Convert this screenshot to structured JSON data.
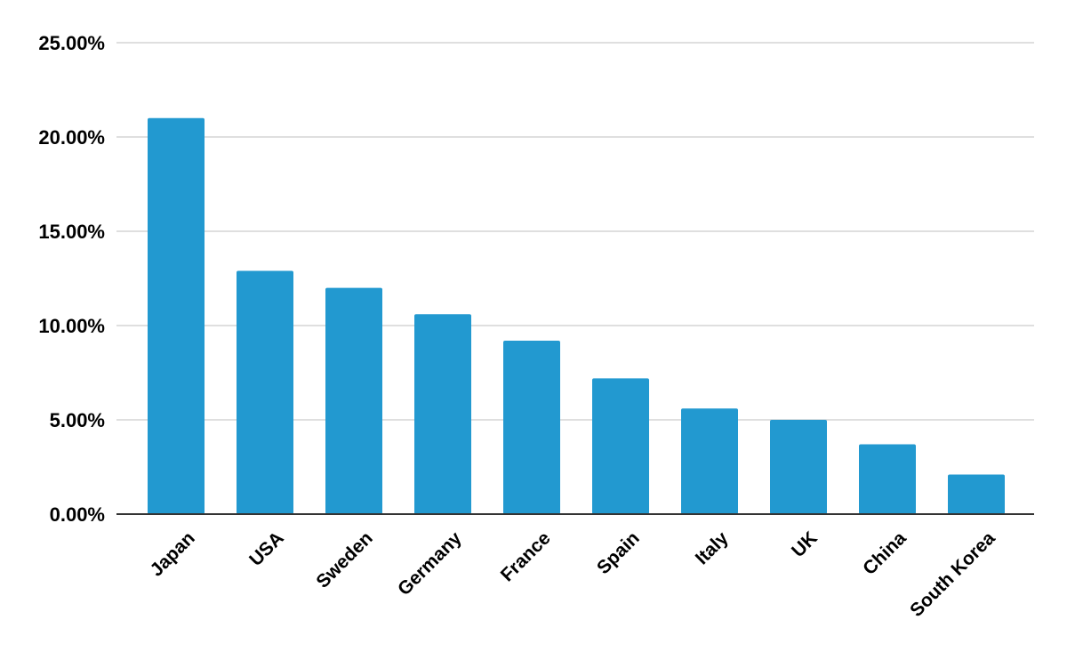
{
  "chart_data": {
    "type": "bar",
    "categories": [
      "Japan",
      "USA",
      "Sweden",
      "Germany",
      "France",
      "Spain",
      "Italy",
      "UK",
      "China",
      "South Korea"
    ],
    "values": [
      21.0,
      12.9,
      12.0,
      10.6,
      9.2,
      7.2,
      5.6,
      5.0,
      3.7,
      2.1
    ],
    "ylim": [
      0,
      25
    ],
    "y_ticks": [
      "0.00%",
      "5.00%",
      "10.00%",
      "15.00%",
      "20.00%",
      "25.00%"
    ],
    "y_tick_values": [
      0,
      5,
      10,
      15,
      20,
      25
    ],
    "title": "",
    "xlabel": "",
    "ylabel": "",
    "grid": true,
    "legend": "none",
    "bar_color": "#2299d0",
    "grid_color": "#cccccc",
    "axis_color": "#333333"
  }
}
